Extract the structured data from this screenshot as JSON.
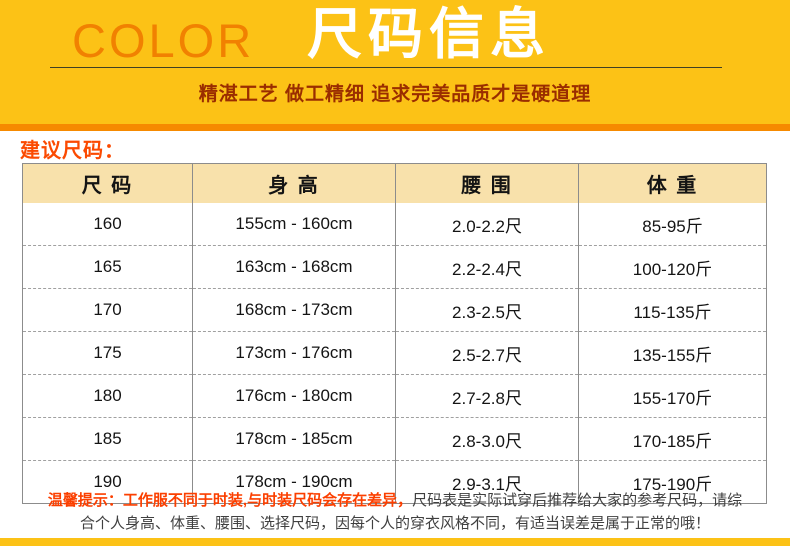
{
  "banner": {
    "brand": "COLOR",
    "title": "尺码信息",
    "tagline": "精湛工艺 做工精细 追求完美品质才是硬道理"
  },
  "section_heading": "建议尺码：",
  "size_table": {
    "headers": [
      "尺 码",
      "身 高",
      "腰 围",
      "体 重"
    ],
    "rows": [
      [
        "160",
        "155cm - 160cm",
        "2.0-2.2尺",
        "85-95斤"
      ],
      [
        "165",
        "163cm - 168cm",
        "2.2-2.4尺",
        "100-120斤"
      ],
      [
        "170",
        "168cm - 173cm",
        "2.3-2.5尺",
        "115-135斤"
      ],
      [
        "175",
        "173cm - 176cm",
        "2.5-2.7尺",
        "135-155斤"
      ],
      [
        "180",
        "176cm - 180cm",
        "2.7-2.8尺",
        "155-170斤"
      ],
      [
        "185",
        "178cm - 185cm",
        "2.8-3.0尺",
        "170-185斤"
      ],
      [
        "190",
        "178cm - 190cm",
        "2.9-3.1尺",
        "175-190斤"
      ]
    ]
  },
  "tips": {
    "highlight": "温馨提示：工作服不同于时装,与时装尺码会存在差异，",
    "body": "尺码表是实际试穿后推荐给大家的参考尺码，请综合个人身高、体重、腰围、选择尺码，因每个人的穿衣风格不同，有适当误差是属于正常的哦！"
  },
  "colors": {
    "banner_yellow": "#FCC216",
    "strip_orange": "#F68A00",
    "brand_orange": "#F18101",
    "rule_dark": "#3F3F23",
    "tagline_maroon": "#9A2D00",
    "heading_orange": "#FB4A01",
    "highlight_red": "#FB3F00",
    "text_dark": "#404040",
    "table_border": "#8C8C8C",
    "dash_gray": "#A0A0A0",
    "header_bg": "#F8E1AB"
  }
}
